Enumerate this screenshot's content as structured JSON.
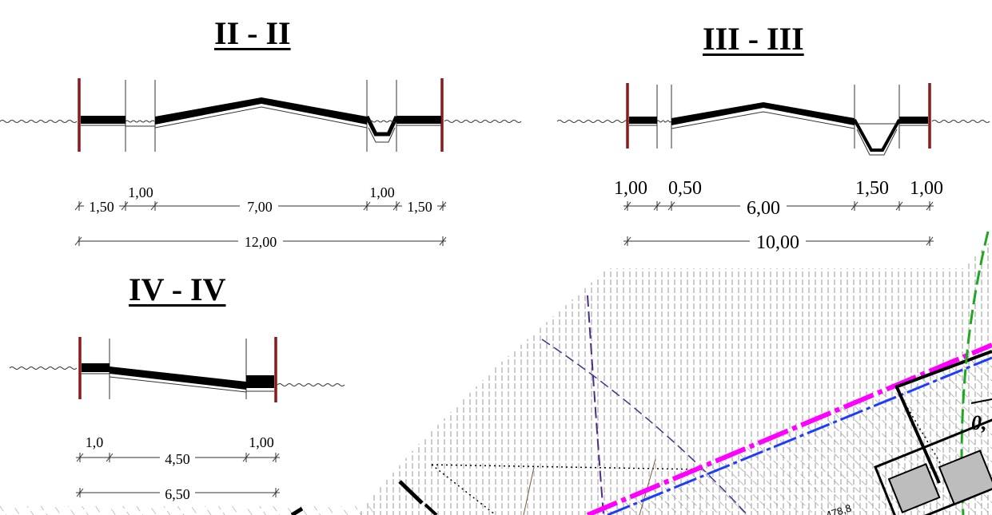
{
  "sections": [
    {
      "id": "II",
      "title": "II - II",
      "top_labels": [
        "1,00",
        "1,00"
      ],
      "row_labels": [
        "1,50",
        "7,00",
        "1,50"
      ],
      "total_label": "12,00"
    },
    {
      "id": "III",
      "title": "III - III",
      "top_labels": [
        "1,00",
        "0,50",
        "1,50",
        "1,00"
      ],
      "row_labels": [
        "6,00"
      ],
      "total_label": "10,00"
    },
    {
      "id": "IV",
      "title": "IV - IV",
      "top_labels": [
        "1,0",
        "1,00"
      ],
      "row_labels": [
        "4,50"
      ],
      "total_label": "6,50"
    }
  ],
  "map": {
    "partial_label": "0,",
    "elevation_label": "478,8"
  },
  "colors": {
    "curb": "#8b1a1a",
    "magenta_line": "#ff00ff",
    "blue_line": "#1e3cff",
    "green_line": "#1fa81f",
    "purple_line": "#4b2c8a",
    "hatch": "#9a9a9a"
  }
}
